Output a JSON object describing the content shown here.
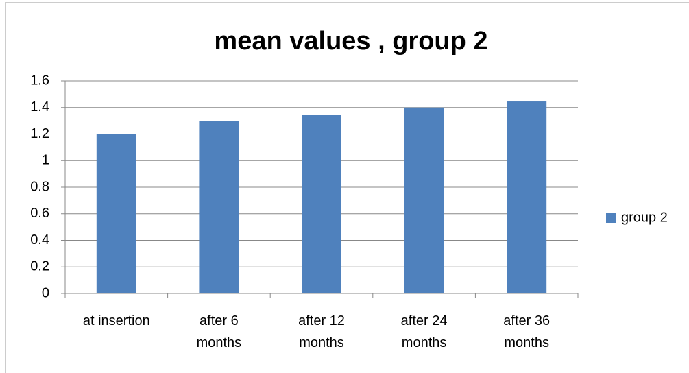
{
  "chart_data": {
    "type": "bar",
    "title": "mean values , group 2",
    "categories": [
      "at insertion",
      "after 6 months",
      "after 12 months",
      "after 24 months",
      "after 36 months"
    ],
    "series": [
      {
        "name": "group 2",
        "color": "#4f81bd",
        "values": [
          1.2,
          1.3,
          1.345,
          1.4,
          1.445
        ]
      }
    ],
    "ylim": [
      0,
      1.6
    ],
    "yticks": [
      0,
      0.2,
      0.4,
      0.6,
      0.8,
      1,
      1.2,
      1.4,
      1.6
    ],
    "grid": true,
    "legend": "right"
  }
}
